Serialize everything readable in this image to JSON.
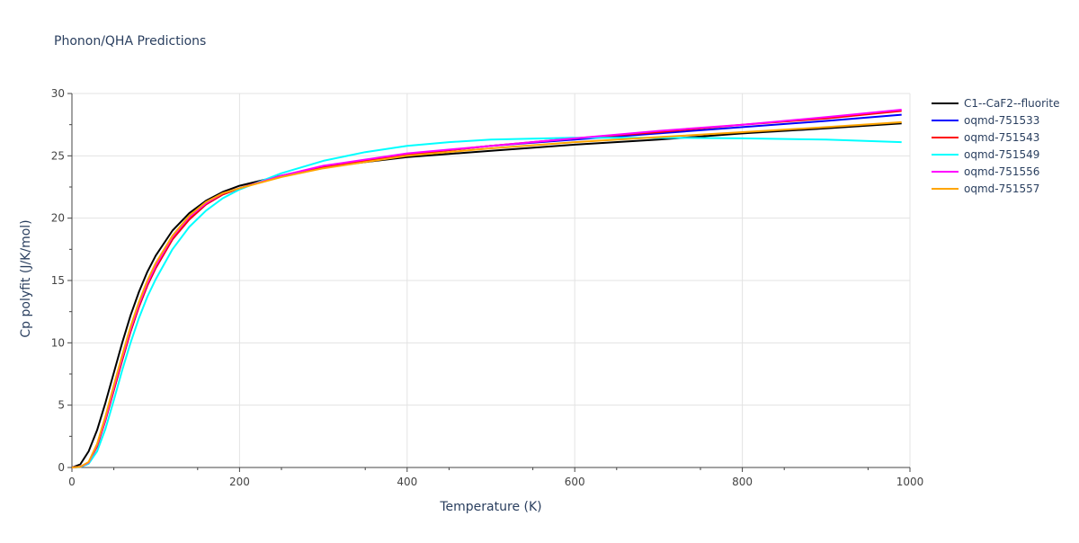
{
  "chart_data": {
    "type": "line",
    "title": "Phonon/QHA Predictions",
    "xlabel": "Temperature (K)",
    "ylabel": "Cp polyfit (J/K/mol)",
    "xlim": [
      0,
      1000
    ],
    "ylim": [
      0,
      30
    ],
    "xticks": [
      0,
      200,
      400,
      600,
      800,
      1000
    ],
    "yticks": [
      0,
      5,
      10,
      15,
      20,
      25,
      30
    ],
    "grid": true,
    "legend_position": "top-right outside",
    "series": [
      {
        "name": "C1--CaF2--fluorite",
        "color": "#000000",
        "x": [
          0,
          10,
          20,
          30,
          40,
          50,
          60,
          70,
          80,
          90,
          100,
          120,
          140,
          160,
          180,
          200,
          250,
          300,
          400,
          500,
          600,
          700,
          800,
          900,
          990
        ],
        "y": [
          0,
          0.25,
          1.3,
          3.0,
          5.2,
          7.6,
          10.0,
          12.2,
          14.1,
          15.7,
          17.0,
          19.0,
          20.4,
          21.4,
          22.1,
          22.6,
          23.4,
          24.1,
          24.9,
          25.4,
          25.9,
          26.3,
          26.8,
          27.2,
          27.6
        ]
      },
      {
        "name": "oqmd-751533",
        "color": "#0000ff",
        "x": [
          0,
          10,
          20,
          30,
          40,
          50,
          60,
          70,
          80,
          90,
          100,
          120,
          140,
          160,
          180,
          200,
          250,
          300,
          400,
          500,
          600,
          700,
          800,
          900,
          990
        ],
        "y": [
          0,
          0.05,
          0.4,
          1.7,
          3.8,
          6.2,
          8.6,
          10.9,
          12.9,
          14.6,
          16.0,
          18.3,
          19.9,
          21.1,
          21.9,
          22.4,
          23.4,
          24.1,
          25.1,
          25.8,
          26.3,
          26.8,
          27.3,
          27.8,
          28.3
        ]
      },
      {
        "name": "oqmd-751543",
        "color": "#ff0000",
        "x": [
          0,
          10,
          20,
          30,
          40,
          50,
          60,
          70,
          80,
          90,
          100,
          120,
          140,
          160,
          180,
          200,
          250,
          300,
          400,
          500,
          600,
          700,
          800,
          900,
          990
        ],
        "y": [
          0,
          0.05,
          0.4,
          1.7,
          3.8,
          6.2,
          8.6,
          10.9,
          12.9,
          14.6,
          16.0,
          18.3,
          19.9,
          21.1,
          21.9,
          22.4,
          23.4,
          24.1,
          25.1,
          25.8,
          26.4,
          26.9,
          27.5,
          28.0,
          28.6
        ]
      },
      {
        "name": "oqmd-751549",
        "color": "#00ffff",
        "x": [
          0,
          10,
          20,
          30,
          40,
          50,
          60,
          70,
          80,
          90,
          100,
          120,
          140,
          160,
          180,
          200,
          250,
          300,
          350,
          400,
          450,
          500,
          600,
          700,
          800,
          900,
          990
        ],
        "y": [
          0,
          0.03,
          0.3,
          1.3,
          3.1,
          5.4,
          7.8,
          10.0,
          12.0,
          13.7,
          15.1,
          17.5,
          19.3,
          20.6,
          21.6,
          22.3,
          23.6,
          24.6,
          25.3,
          25.8,
          26.1,
          26.3,
          26.45,
          26.45,
          26.4,
          26.3,
          26.1
        ]
      },
      {
        "name": "oqmd-751556",
        "color": "#ff00ff",
        "x": [
          0,
          10,
          20,
          30,
          40,
          50,
          60,
          70,
          80,
          90,
          100,
          120,
          140,
          160,
          180,
          200,
          250,
          300,
          400,
          500,
          600,
          700,
          800,
          900,
          990
        ],
        "y": [
          0,
          0.05,
          0.4,
          1.8,
          3.9,
          6.4,
          8.8,
          11.1,
          13.1,
          14.8,
          16.2,
          18.5,
          20.1,
          21.2,
          22.0,
          22.4,
          23.4,
          24.2,
          25.2,
          25.8,
          26.4,
          27.0,
          27.5,
          28.1,
          28.7
        ]
      },
      {
        "name": "oqmd-751557",
        "color": "#ffa500",
        "x": [
          0,
          10,
          20,
          30,
          40,
          50,
          60,
          70,
          80,
          90,
          100,
          120,
          140,
          160,
          180,
          200,
          250,
          300,
          400,
          500,
          600,
          700,
          800,
          900,
          990
        ],
        "y": [
          0,
          0.05,
          0.45,
          1.9,
          4.1,
          6.6,
          9.0,
          11.3,
          13.3,
          15.0,
          16.4,
          18.6,
          20.2,
          21.3,
          22.0,
          22.4,
          23.3,
          24.0,
          25.0,
          25.6,
          26.1,
          26.5,
          26.9,
          27.3,
          27.7
        ]
      }
    ]
  }
}
